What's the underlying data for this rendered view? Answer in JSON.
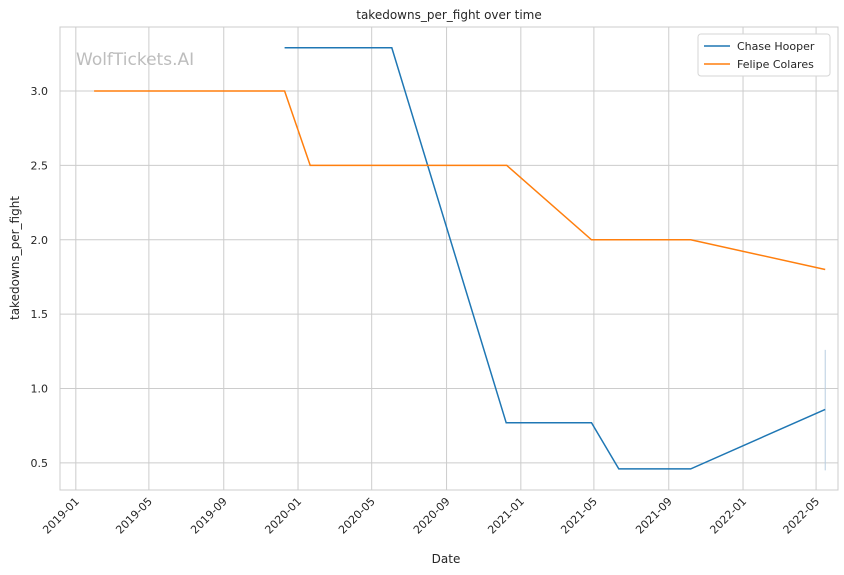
{
  "chart_data": {
    "type": "line",
    "title": "takedowns_per_fight over time",
    "xlabel": "Date",
    "ylabel": "takedowns_per_fight",
    "watermark": "WolfTickets.AI",
    "xlim": [
      "2018-12-06",
      "2022-06-06"
    ],
    "ylim": [
      0.318,
      3.43
    ],
    "x_ticks": [
      "2019-01",
      "2019-05",
      "2019-09",
      "2020-01",
      "2020-05",
      "2020-09",
      "2021-01",
      "2021-05",
      "2021-09",
      "2022-01",
      "2022-05"
    ],
    "y_ticks": [
      "0.5",
      "1.0",
      "1.5",
      "2.0",
      "2.5",
      "3.0"
    ],
    "grid": true,
    "legend_position": "top-right",
    "series": [
      {
        "name": "Chase Hooper",
        "color": "#1f77b4",
        "x": [
          "2019-12-10",
          "2020-06-03",
          "2020-12-08",
          "2021-04-27",
          "2021-06-11",
          "2021-10-07",
          "2022-05-16"
        ],
        "y": [
          3.29,
          3.29,
          0.77,
          0.77,
          0.46,
          0.46,
          0.86
        ]
      },
      {
        "name": "Felipe Colares",
        "color": "#ff7f0e",
        "x": [
          "2019-01-31",
          "2019-12-10",
          "2020-01-21",
          "2020-12-09",
          "2021-04-27",
          "2021-10-07",
          "2022-05-16"
        ],
        "y": [
          3.0,
          3.0,
          2.5,
          2.5,
          2.0,
          2.0,
          1.8
        ]
      }
    ],
    "faint_vline": {
      "x": "2022-05-16",
      "y": [
        0.45,
        1.26
      ],
      "color": "#b8cde0"
    }
  }
}
